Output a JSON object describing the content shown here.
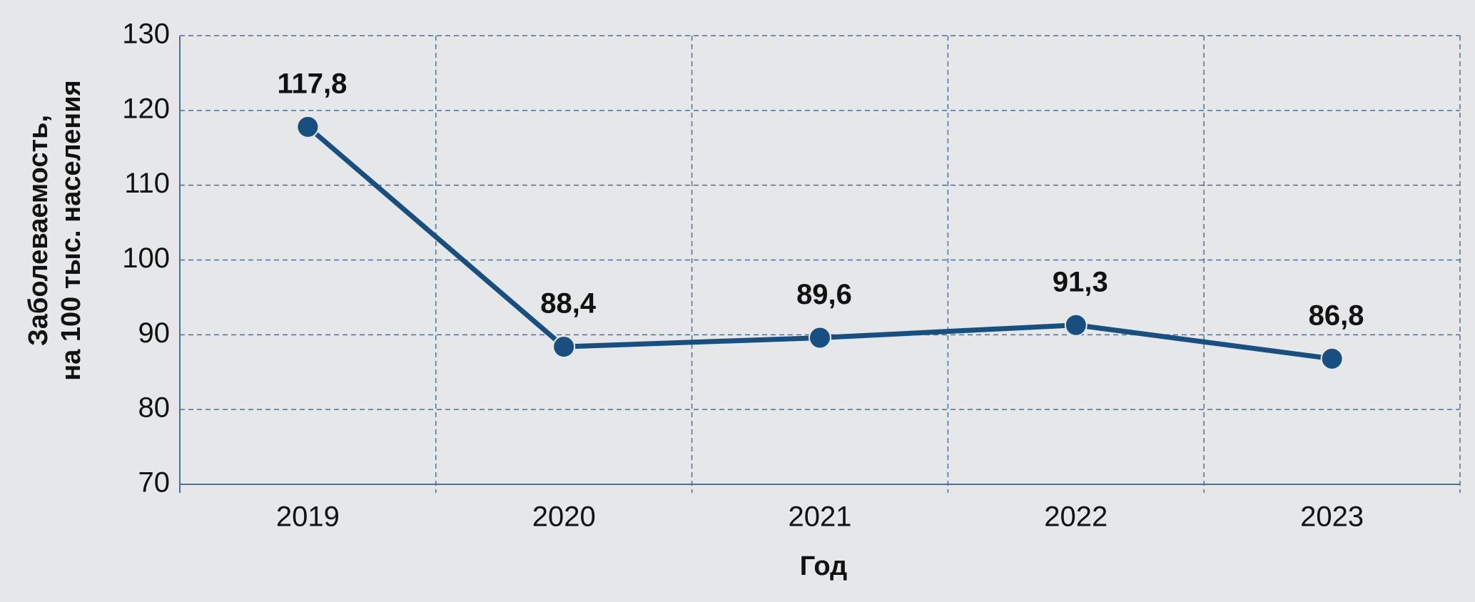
{
  "chart_data": {
    "type": "line",
    "ylabel": [
      "Заболеваемость,",
      "на 100 тыс. населения"
    ],
    "xlabel": "Год",
    "categories": [
      "2019",
      "2020",
      "2021",
      "2022",
      "2023"
    ],
    "series": [
      {
        "color": "#164f80",
        "values": [
          117.8,
          88.4,
          89.6,
          91.3,
          86.8
        ],
        "value_labels": [
          "117,8",
          "88,4",
          "89,6",
          "91,3",
          "86,8"
        ]
      }
    ],
    "ylim": [
      70,
      130
    ],
    "yticks": [
      70,
      80,
      90,
      100,
      110,
      120,
      130
    ],
    "grid": true
  }
}
